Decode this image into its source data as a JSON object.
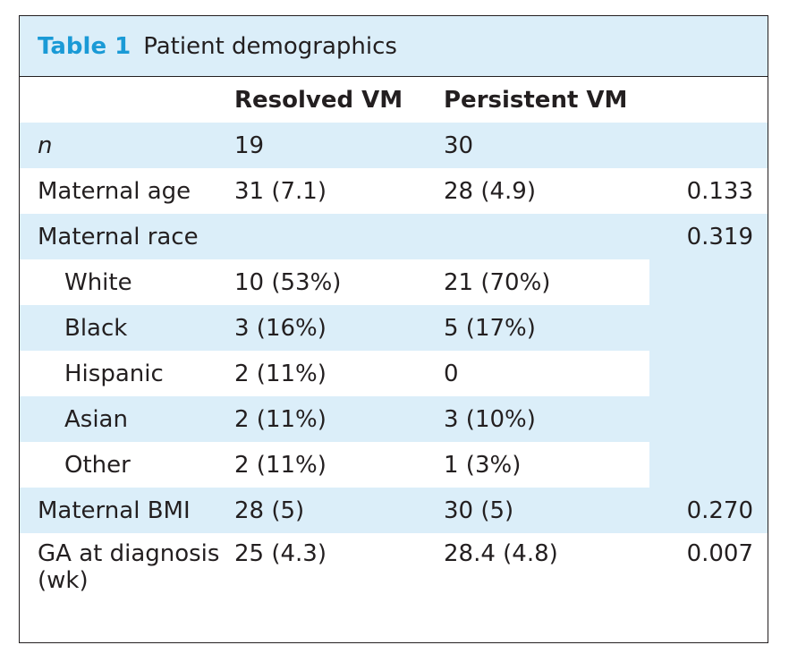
{
  "table": {
    "number": "Table 1",
    "title": "Patient demographics",
    "headers": [
      "",
      "Resolved VM",
      "Persistent VM",
      ""
    ],
    "rows": [
      {
        "label": "n",
        "resolved": "19",
        "persistent": "30",
        "p": ""
      },
      {
        "label": "Maternal age",
        "resolved": "31 (7.1)",
        "persistent": "28 (4.9)",
        "p": "0.133"
      },
      {
        "label": "Maternal race",
        "resolved": "",
        "persistent": "",
        "p": "0.319"
      },
      {
        "label": "White",
        "resolved": "10 (53%)",
        "persistent": "21 (70%)",
        "p": ""
      },
      {
        "label": "Black",
        "resolved": "3 (16%)",
        "persistent": "5 (17%)",
        "p": ""
      },
      {
        "label": "Hispanic",
        "resolved": "2 (11%)",
        "persistent": "0",
        "p": ""
      },
      {
        "label": "Asian",
        "resolved": "2 (11%)",
        "persistent": "3 (10%)",
        "p": ""
      },
      {
        "label": "Other",
        "resolved": "2 (11%)",
        "persistent": "1 (3%)",
        "p": ""
      },
      {
        "label": "Maternal BMI",
        "resolved": "28 (5)",
        "persistent": "30 (5)",
        "p": "0.270"
      },
      {
        "label": "GA at diagnosis (wk)",
        "resolved": "25 (4.3)",
        "persistent": "28.4 (4.8)",
        "p": "0.007"
      }
    ]
  },
  "colors": {
    "accent": "#1a9ad6",
    "shade": "#dbeef9",
    "text": "#231f20"
  }
}
